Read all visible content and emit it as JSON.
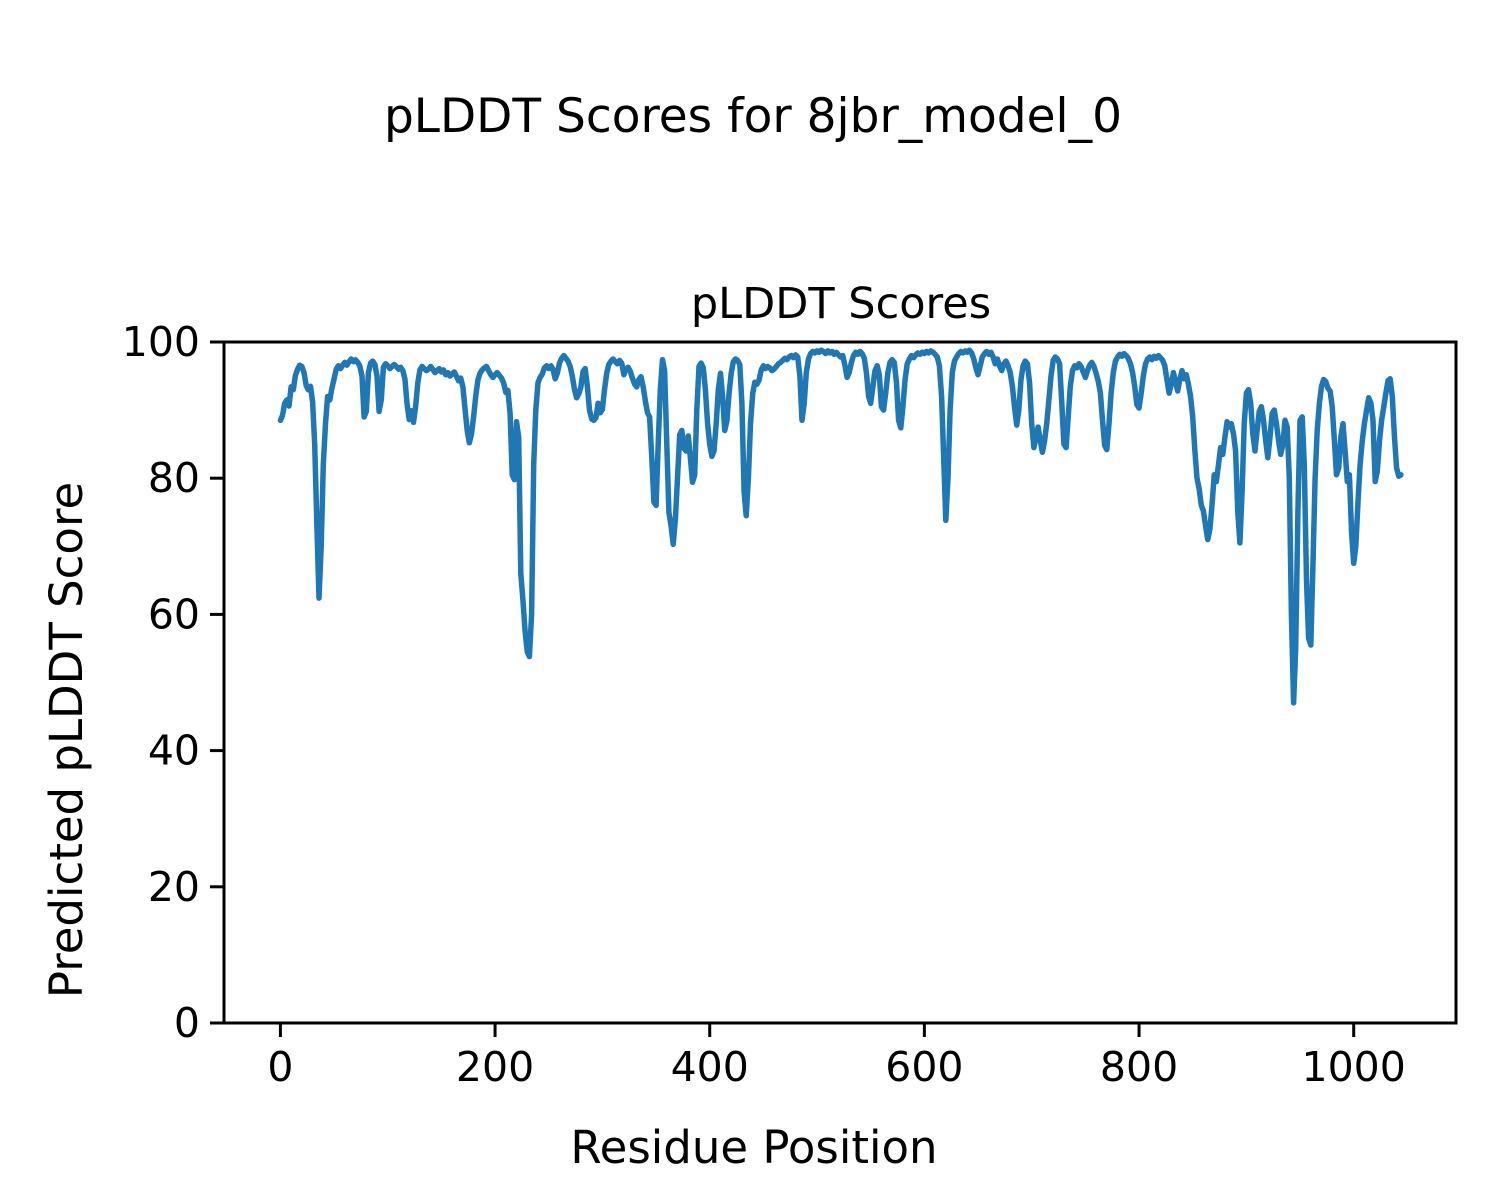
{
  "chart_data": {
    "type": "line",
    "suptitle": "pLDDT Scores for 8jbr_model_0",
    "title": "pLDDT Scores",
    "xlabel": "Residue Position",
    "ylabel": "Predicted pLDDT Score",
    "xticks": [
      0,
      200,
      400,
      600,
      800,
      1000
    ],
    "yticks": [
      0,
      20,
      40,
      60,
      80,
      100
    ],
    "xlim": [
      -52,
      1096
    ],
    "ylim": [
      0,
      100
    ],
    "legend": null,
    "grid": false,
    "line_color": "#1f77b4",
    "background_color": "#ffffff",
    "spine_color": "#000000",
    "series_name": "pLDDT",
    "x": [
      0,
      2,
      4,
      6,
      8,
      10,
      12,
      14,
      16,
      18,
      20,
      22,
      24,
      26,
      28,
      30,
      32,
      34,
      36,
      38,
      40,
      42,
      44,
      46,
      48,
      50,
      52,
      54,
      56,
      58,
      60,
      62,
      64,
      66,
      68,
      70,
      72,
      74,
      76,
      78,
      80,
      82,
      84,
      86,
      88,
      90,
      92,
      94,
      96,
      98,
      100,
      102,
      104,
      106,
      108,
      110,
      112,
      114,
      116,
      118,
      120,
      122,
      124,
      126,
      128,
      130,
      132,
      134,
      136,
      138,
      140,
      142,
      144,
      146,
      148,
      150,
      152,
      154,
      156,
      158,
      160,
      162,
      164,
      166,
      168,
      170,
      172,
      174,
      176,
      178,
      180,
      182,
      184,
      186,
      188,
      190,
      192,
      194,
      196,
      198,
      200,
      202,
      204,
      206,
      208,
      210,
      212,
      214,
      216,
      218,
      220,
      222,
      224,
      226,
      228,
      230,
      232,
      234,
      236,
      238,
      240,
      242,
      244,
      246,
      248,
      250,
      252,
      254,
      256,
      258,
      260,
      262,
      264,
      266,
      268,
      270,
      272,
      274,
      276,
      278,
      280,
      282,
      284,
      286,
      288,
      290,
      292,
      294,
      296,
      298,
      300,
      302,
      304,
      306,
      308,
      310,
      312,
      314,
      316,
      318,
      320,
      322,
      324,
      326,
      328,
      330,
      332,
      334,
      336,
      338,
      340,
      342,
      344,
      346,
      348,
      350,
      352,
      354,
      356,
      358,
      360,
      362,
      364,
      366,
      368,
      370,
      372,
      374,
      376,
      378,
      380,
      382,
      384,
      386,
      388,
      390,
      392,
      394,
      396,
      398,
      400,
      402,
      404,
      406,
      408,
      410,
      412,
      414,
      416,
      418,
      420,
      422,
      424,
      426,
      428,
      430,
      432,
      434,
      436,
      438,
      440,
      442,
      444,
      446,
      448,
      450,
      452,
      454,
      456,
      458,
      460,
      462,
      464,
      466,
      468,
      470,
      472,
      474,
      476,
      478,
      480,
      482,
      484,
      486,
      488,
      490,
      492,
      494,
      496,
      498,
      500,
      502,
      504,
      506,
      508,
      510,
      512,
      514,
      516,
      518,
      520,
      522,
      524,
      526,
      528,
      530,
      532,
      534,
      536,
      538,
      540,
      542,
      544,
      546,
      548,
      550,
      552,
      554,
      556,
      558,
      560,
      562,
      564,
      566,
      568,
      570,
      572,
      574,
      576,
      578,
      580,
      582,
      584,
      586,
      588,
      590,
      592,
      594,
      596,
      598,
      600,
      602,
      604,
      606,
      608,
      610,
      612,
      614,
      616,
      618,
      620,
      622,
      624,
      626,
      628,
      630,
      632,
      634,
      636,
      638,
      640,
      642,
      644,
      646,
      648,
      650,
      652,
      654,
      656,
      658,
      660,
      662,
      664,
      666,
      668,
      670,
      672,
      674,
      676,
      678,
      680,
      682,
      684,
      686,
      688,
      690,
      692,
      694,
      696,
      698,
      700,
      702,
      704,
      706,
      708,
      710,
      712,
      714,
      716,
      718,
      720,
      722,
      724,
      726,
      728,
      730,
      732,
      734,
      736,
      738,
      740,
      742,
      744,
      746,
      748,
      750,
      752,
      754,
      756,
      758,
      760,
      762,
      764,
      766,
      768,
      770,
      772,
      774,
      776,
      778,
      780,
      782,
      784,
      786,
      788,
      790,
      792,
      794,
      796,
      798,
      800,
      802,
      804,
      806,
      808,
      810,
      812,
      814,
      816,
      818,
      820,
      822,
      824,
      826,
      828,
      830,
      832,
      834,
      836,
      838,
      840,
      842,
      844,
      846,
      848,
      850,
      852,
      854,
      856,
      858,
      860,
      862,
      864,
      866,
      868,
      870,
      872,
      874,
      876,
      878,
      880,
      882,
      884,
      886,
      888,
      890,
      892,
      894,
      896,
      898,
      900,
      902,
      904,
      906,
      908,
      910,
      912,
      914,
      916,
      918,
      920,
      922,
      924,
      926,
      928,
      930,
      932,
      934,
      936,
      938,
      940,
      942,
      944,
      946,
      948,
      950,
      952,
      954,
      956,
      958,
      960,
      962,
      964,
      966,
      968,
      970,
      972,
      974,
      976,
      978,
      980,
      982,
      984,
      986,
      988,
      990,
      992,
      994,
      996,
      998,
      1000,
      1002,
      1004,
      1006,
      1008,
      1010,
      1012,
      1014,
      1016,
      1018,
      1020,
      1022,
      1024,
      1026,
      1028,
      1030,
      1032,
      1034,
      1036,
      1038,
      1040,
      1042,
      1044
    ],
    "y": [
      88.5,
      89.2,
      91.0,
      91.5,
      90.6,
      93.4,
      93.0,
      95.1,
      96.0,
      96.6,
      96.4,
      95.5,
      93.6,
      93.0,
      93.5,
      91.2,
      85.0,
      73.0,
      62.4,
      70.0,
      82.0,
      88.0,
      92.0,
      91.5,
      93.2,
      94.6,
      96.0,
      96.5,
      96.1,
      96.6,
      97.0,
      96.6,
      97.1,
      97.5,
      97.1,
      97.4,
      97.0,
      96.5,
      95.0,
      89.0,
      89.8,
      95.5,
      96.9,
      97.2,
      96.7,
      95.0,
      89.8,
      91.5,
      96.3,
      96.8,
      96.5,
      96.1,
      96.4,
      96.7,
      96.4,
      96.0,
      96.3,
      95.8,
      94.6,
      91.0,
      88.6,
      89.9,
      88.2,
      90.5,
      94.0,
      95.9,
      96.4,
      96.1,
      95.8,
      96.0,
      96.4,
      96.0,
      95.5,
      95.8,
      96.1,
      95.6,
      95.9,
      95.2,
      95.5,
      95.0,
      95.3,
      95.6,
      95.0,
      94.3,
      94.7,
      93.4,
      90.2,
      87.0,
      85.2,
      86.4,
      89.0,
      92.0,
      94.4,
      95.4,
      95.9,
      96.2,
      96.4,
      95.8,
      95.2,
      94.8,
      95.2,
      95.5,
      95.1,
      94.7,
      94.0,
      92.6,
      92.9,
      89.5,
      80.5,
      79.8,
      88.3,
      86.0,
      66.0,
      62.0,
      57.5,
      54.5,
      53.8,
      60.0,
      82.0,
      90.0,
      94.0,
      94.8,
      95.3,
      96.2,
      96.5,
      96.1,
      96.5,
      96.0,
      94.6,
      95.4,
      96.9,
      97.6,
      98.0,
      97.6,
      97.2,
      96.4,
      95.0,
      93.0,
      91.8,
      92.4,
      93.4,
      95.7,
      96.1,
      93.4,
      90.0,
      88.7,
      88.5,
      88.9,
      91.0,
      89.6,
      90.1,
      93.0,
      95.4,
      96.7,
      97.2,
      97.5,
      97.1,
      96.8,
      97.3,
      96.9,
      95.2,
      96.0,
      96.3,
      95.7,
      94.7,
      93.8,
      93.4,
      94.5,
      94.9,
      93.4,
      91.4,
      89.6,
      89.0,
      83.0,
      76.5,
      76.0,
      85.0,
      93.0,
      97.4,
      95.8,
      85.0,
      75.0,
      73.0,
      70.3,
      74.0,
      80.0,
      86.4,
      87.0,
      84.4,
      84.0,
      86.2,
      83.0,
      79.4,
      80.5,
      90.0,
      96.4,
      96.9,
      96.2,
      93.0,
      88.0,
      85.0,
      83.2,
      84.0,
      88.0,
      93.0,
      95.4,
      92.0,
      87.0,
      88.4,
      92.4,
      95.4,
      97.1,
      97.5,
      97.3,
      96.7,
      91.0,
      78.0,
      74.5,
      80.0,
      88.0,
      92.4,
      94.1,
      93.8,
      94.4,
      95.9,
      96.5,
      96.1,
      96.4,
      96.2,
      95.8,
      96.0,
      96.4,
      96.8,
      97.0,
      97.3,
      97.6,
      97.4,
      97.8,
      98.0,
      97.7,
      98.1,
      97.8,
      95.0,
      88.5,
      91.0,
      95.5,
      97.5,
      98.3,
      98.6,
      98.4,
      98.7,
      98.5,
      98.8,
      98.6,
      98.3,
      98.7,
      98.4,
      98.6,
      98.2,
      98.5,
      98.1,
      97.8,
      98.0,
      96.5,
      94.8,
      95.5,
      97.0,
      98.0,
      98.5,
      98.2,
      98.6,
      98.3,
      97.6,
      95.5,
      92.0,
      91.0,
      93.5,
      95.8,
      96.5,
      95.2,
      90.5,
      90.0,
      92.5,
      95.5,
      97.0,
      97.4,
      97.0,
      94.0,
      88.5,
      87.4,
      90.5,
      94.5,
      96.8,
      97.5,
      98.0,
      97.7,
      98.1,
      98.4,
      98.2,
      98.5,
      98.3,
      98.6,
      98.4,
      98.7,
      98.5,
      98.2,
      97.8,
      96.5,
      92.0,
      83.0,
      73.8,
      80.0,
      90.0,
      95.5,
      97.2,
      97.8,
      98.3,
      98.6,
      98.4,
      98.7,
      98.5,
      98.8,
      98.4,
      97.5,
      96.2,
      95.2,
      96.5,
      97.8,
      98.3,
      98.6,
      98.2,
      98.5,
      97.8,
      96.8,
      97.5,
      96.5,
      95.8,
      96.8,
      97.2,
      96.5,
      95.5,
      93.5,
      90.5,
      87.8,
      90.0,
      94.5,
      96.5,
      97.2,
      96.8,
      94.0,
      88.0,
      84.5,
      86.0,
      87.5,
      85.5,
      83.8,
      85.5,
      88.0,
      91.5,
      95.0,
      97.3,
      97.8,
      97.5,
      96.8,
      91.0,
      85.0,
      84.5,
      89.0,
      93.5,
      95.8,
      96.5,
      96.2,
      96.8,
      96.4,
      95.6,
      94.8,
      95.8,
      96.6,
      97.0,
      96.4,
      95.4,
      94.2,
      92.5,
      88.5,
      84.8,
      84.2,
      88.0,
      92.5,
      95.5,
      97.2,
      97.8,
      98.2,
      97.9,
      98.3,
      98.0,
      97.6,
      96.8,
      95.5,
      93.5,
      90.8,
      90.3,
      92.5,
      95.0,
      96.8,
      97.5,
      97.8,
      97.4,
      97.9,
      97.6,
      98.0,
      97.7,
      97.3,
      96.5,
      94.5,
      92.5,
      93.8,
      95.5,
      94.2,
      92.8,
      94.5,
      95.8,
      94.6,
      95.2,
      93.8,
      92.0,
      89.0,
      84.0,
      80.0,
      78.5,
      76.0,
      75.2,
      73.0,
      71.0,
      72.5,
      76.0,
      80.5,
      79.5,
      82.0,
      84.5,
      83.5,
      86.0,
      88.3,
      87.5,
      88.0,
      86.5,
      84.0,
      75.0,
      70.5,
      78.0,
      88.0,
      92.5,
      93.0,
      91.0,
      86.5,
      84.0,
      87.0,
      89.8,
      90.5,
      88.5,
      85.5,
      83.0,
      86.0,
      89.5,
      90.0,
      88.0,
      85.5,
      83.5,
      85.0,
      88.5,
      87.5,
      80.0,
      60.0,
      47.0,
      55.0,
      75.0,
      88.5,
      89.0,
      82.0,
      65.0,
      56.5,
      55.5,
      67.0,
      80.0,
      87.0,
      91.0,
      93.5,
      94.5,
      94.2,
      93.2,
      92.8,
      90.5,
      85.5,
      80.5,
      81.5,
      86.0,
      88.0,
      84.0,
      79.5,
      80.5,
      72.0,
      67.5,
      70.0,
      76.5,
      82.0,
      85.5,
      88.0,
      90.0,
      91.8,
      91.0,
      88.5,
      79.5,
      81.0,
      85.5,
      88.5,
      90.5,
      92.5,
      94.3,
      94.6,
      92.0,
      86.0,
      81.5,
      80.3,
      80.5
    ]
  }
}
